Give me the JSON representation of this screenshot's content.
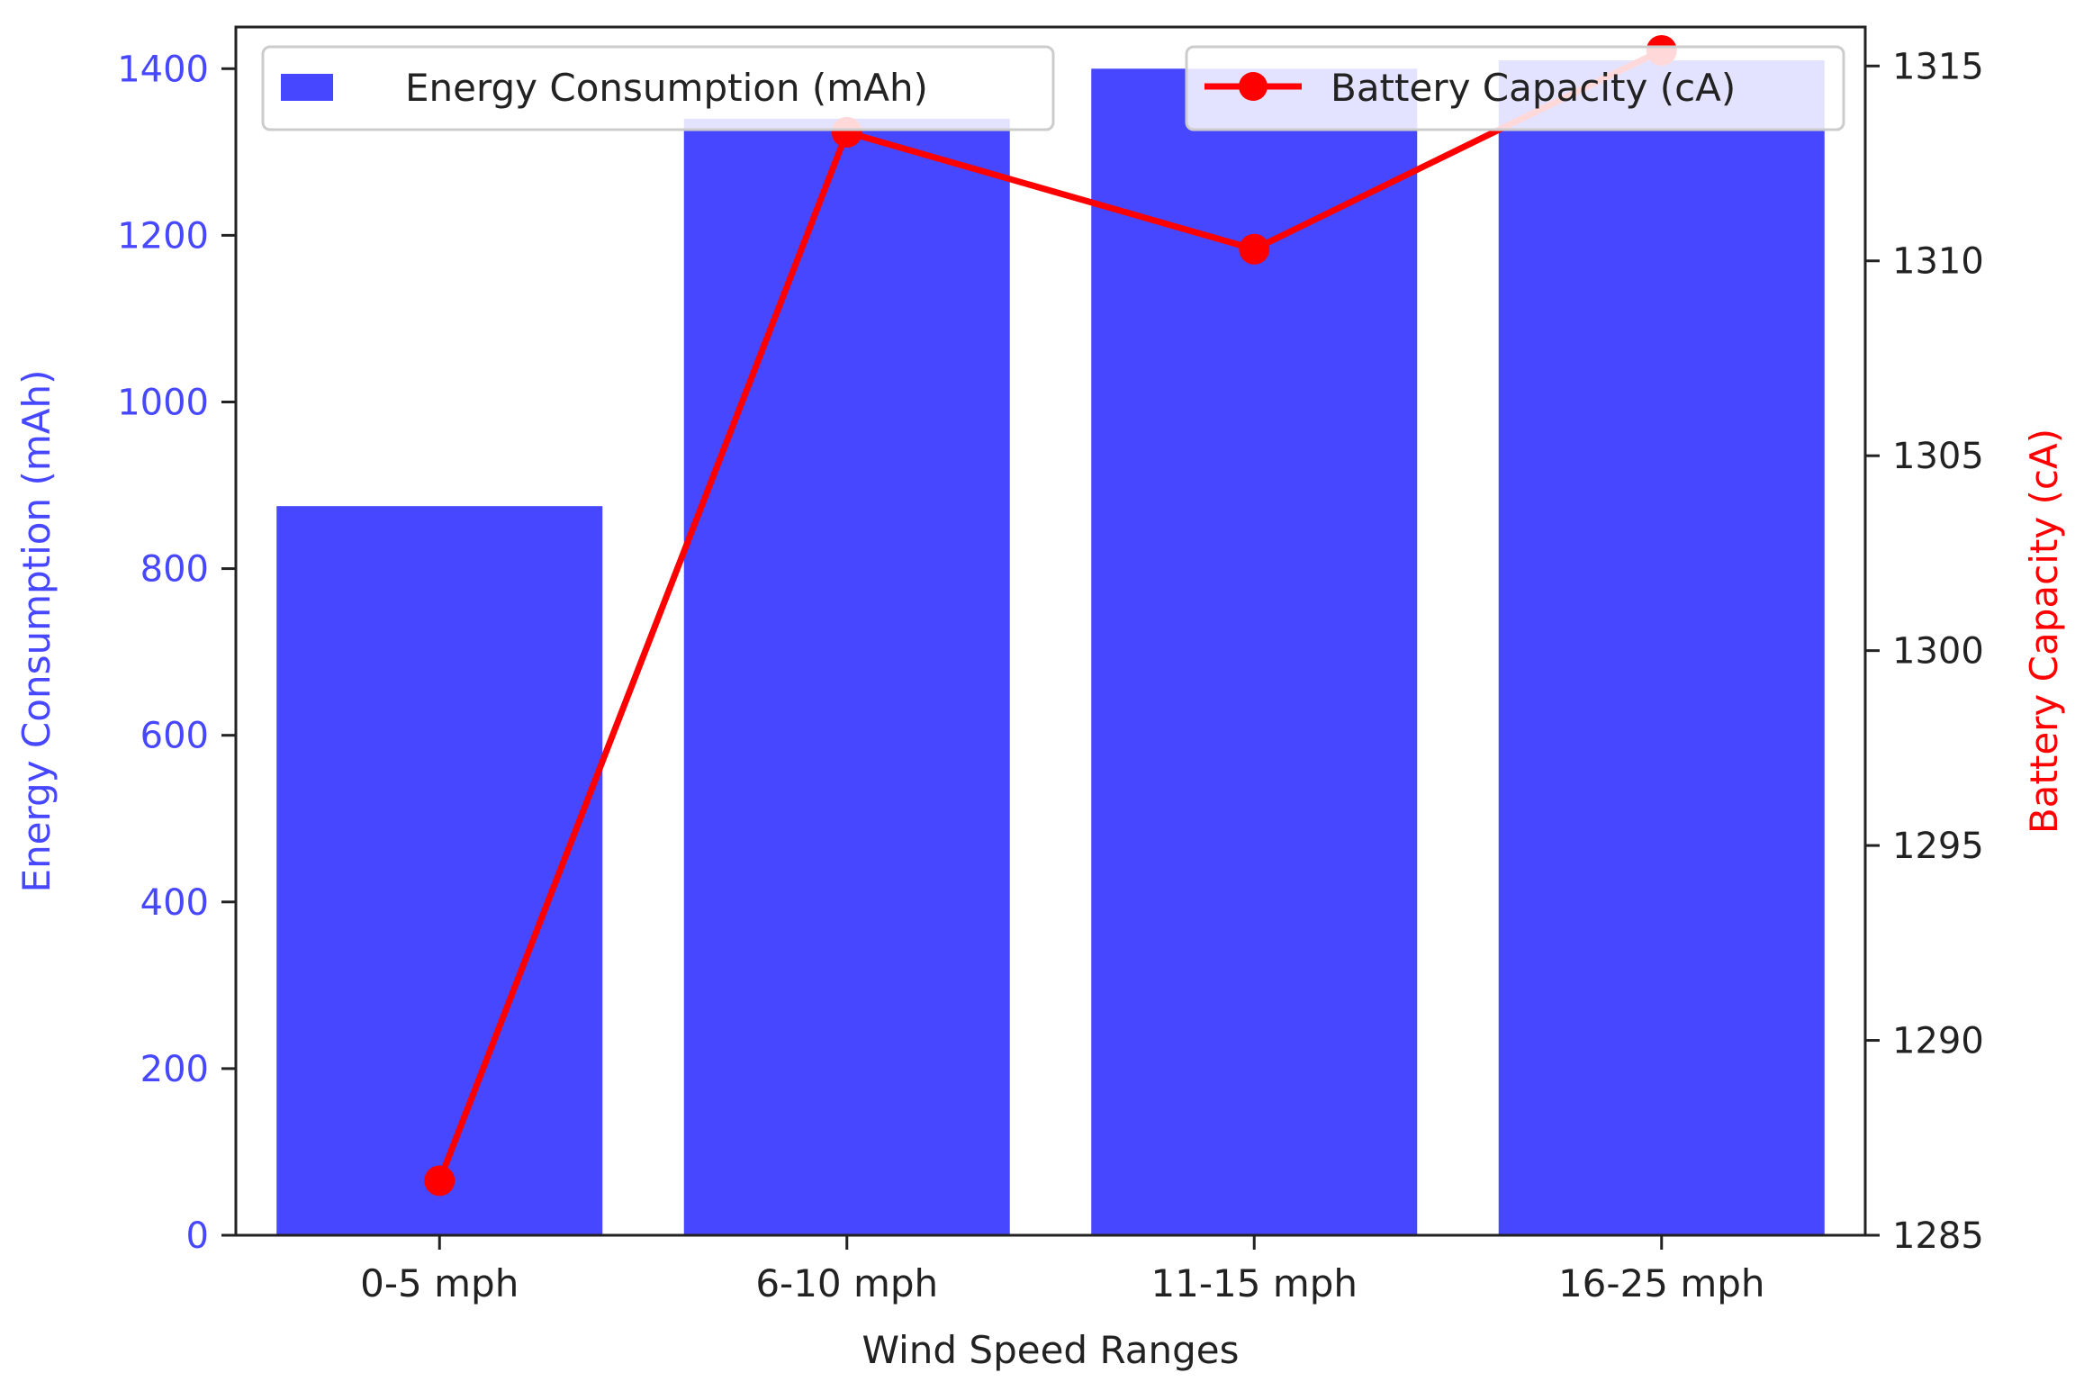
{
  "chart_data": {
    "type": "bar",
    "categories": [
      "0-5 mph",
      "6-10 mph",
      "11-15 mph",
      "16-25 mph"
    ],
    "series": [
      {
        "name": "Energy Consumption (mAh)",
        "type": "bar",
        "axis": "left",
        "color": "#4747ff",
        "values": [
          875,
          1340,
          1400,
          1410
        ]
      },
      {
        "name": "Battery Capacity (cA)",
        "type": "line",
        "axis": "right",
        "color": "#ff0000",
        "values": [
          1286.4,
          1313.3,
          1310.3,
          1315.4
        ]
      }
    ],
    "xlabel": "Wind Speed Ranges",
    "ylabel_left": "Energy Consumption (mAh)",
    "ylabel_right": "Battery Capacity (cA)",
    "ylim_left": [
      0,
      1450
    ],
    "ylim_right": [
      1285,
      1316
    ],
    "yticks_left": [
      0,
      200,
      400,
      600,
      800,
      1000,
      1200,
      1400
    ],
    "yticks_right": [
      1285,
      1290,
      1295,
      1300,
      1305,
      1310,
      1315
    ],
    "grid": false,
    "legend": {
      "left": {
        "placement": "top-left",
        "label": "Energy Consumption (mAh)"
      },
      "right": {
        "placement": "top-right",
        "label": "Battery Capacity (cA)"
      }
    },
    "left_axis_color": "#4747ff",
    "right_axis_color": "#ff0000"
  }
}
